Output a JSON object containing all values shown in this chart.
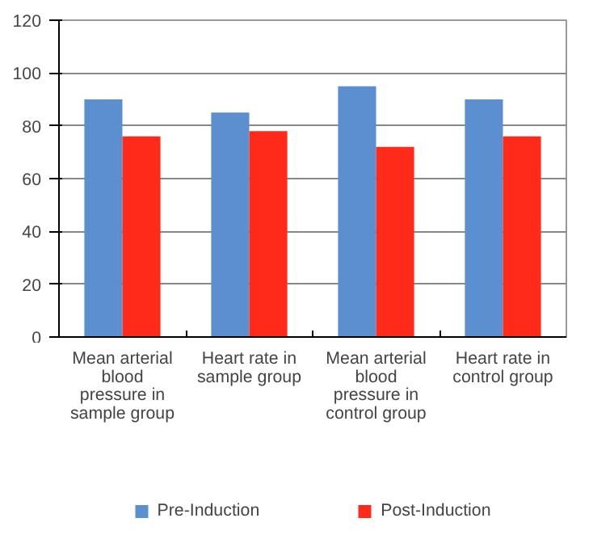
{
  "chart_data": {
    "type": "bar",
    "categories": [
      "Mean arterial blood pressure in sample group",
      "Heart rate in sample group",
      "Mean arterial blood pressure in control group",
      "Heart rate in control group"
    ],
    "series": [
      {
        "name": "Pre-Induction",
        "color": "#5b8fd0",
        "values": [
          90,
          85,
          95,
          90
        ]
      },
      {
        "name": "Post-Induction",
        "color": "#ff2a1a",
        "values": [
          76,
          78,
          72,
          76
        ]
      }
    ],
    "ylim": [
      0,
      120
    ],
    "yticks": [
      0,
      20,
      40,
      60,
      80,
      100,
      120
    ],
    "grid": "y",
    "legend": "bottom"
  }
}
